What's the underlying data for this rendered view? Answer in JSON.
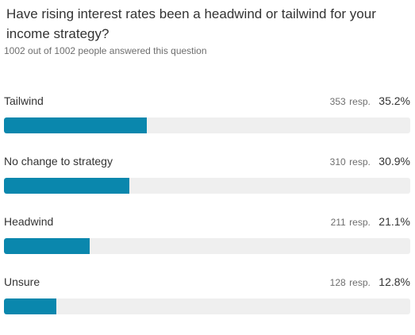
{
  "survey": {
    "question": "Have rising interest rates been a headwind or tailwind for your income strategy?",
    "answered": "1002 out of 1002 people answered this question",
    "resp_suffix": "resp.",
    "bar_color": "#0a87ad",
    "track_color": "#efefef",
    "options": [
      {
        "label": "Tailwind",
        "responses": "353",
        "percent": "35.2%",
        "fraction": 0.352
      },
      {
        "label": "No change to strategy",
        "responses": "310",
        "percent": "30.9%",
        "fraction": 0.309
      },
      {
        "label": "Headwind",
        "responses": "211",
        "percent": "21.1%",
        "fraction": 0.211
      },
      {
        "label": "Unsure",
        "responses": "128",
        "percent": "12.8%",
        "fraction": 0.128
      }
    ]
  }
}
